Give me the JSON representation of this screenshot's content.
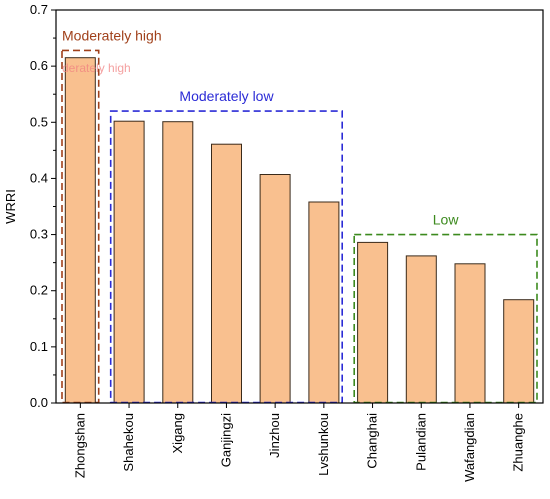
{
  "chart_data": {
    "type": "bar",
    "title": "",
    "xlabel": "",
    "ylabel": "WRRI",
    "ylim": [
      0,
      0.7
    ],
    "yticks": [
      "0.0",
      "0.1",
      "0.2",
      "0.3",
      "0.4",
      "0.5",
      "0.6",
      "0.7"
    ],
    "categories": [
      "Zhongshan",
      "Shahekou",
      "Xigang",
      "Ganjingzi",
      "Jinzhou",
      "Lvshunkou",
      "Changhai",
      "Pulandian",
      "Wafangdian",
      "Zhuanghe"
    ],
    "values": [
      0.615,
      0.502,
      0.501,
      0.461,
      0.407,
      0.358,
      0.286,
      0.262,
      0.248,
      0.184
    ],
    "bar_color": "#f9c08f",
    "bar_edge_color": "#3a2a1a",
    "grid": false,
    "groups": [
      {
        "label": "Moderately high",
        "color": "#a0401a",
        "first": 0,
        "last": 0,
        "top_value": 0.628
      },
      {
        "label": "Moderately low",
        "color": "#2b2bd6",
        "first": 1,
        "last": 5,
        "top_value": 0.52
      },
      {
        "label": "Low",
        "color": "#3c8a1e",
        "first": 6,
        "last": 9,
        "top_value": 0.3
      }
    ],
    "ghost_text": "derately high",
    "ghost_color": "#f08080"
  }
}
